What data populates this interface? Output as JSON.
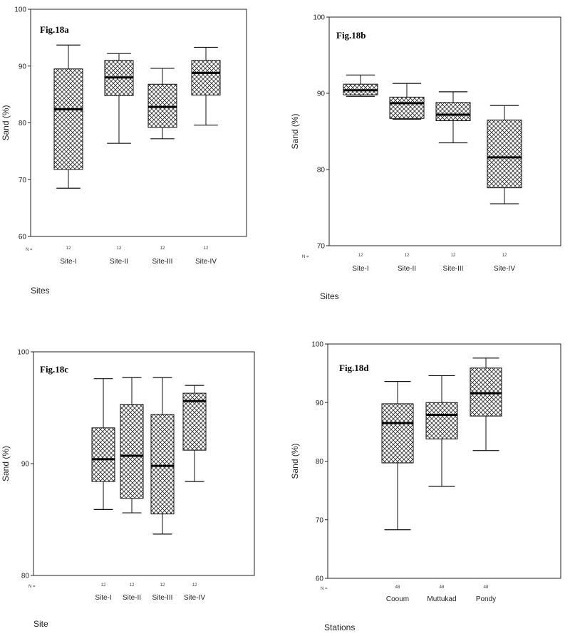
{
  "chart_data": [
    {
      "type": "box",
      "title": "Fig.18a",
      "ylabel": "Sand (%)",
      "xlabel": "Sites",
      "n_label": "N =",
      "ylim": [
        60,
        100
      ],
      "yticks": [
        60,
        70,
        80,
        90,
        100
      ],
      "categories": [
        "Site-I",
        "Site-II",
        "Site-III",
        "Site-IV"
      ],
      "n": [
        "12",
        "12",
        "12",
        "12"
      ],
      "boxes": [
        {
          "min": 68.5,
          "q1": 71.8,
          "median": 82.4,
          "q3": 89.5,
          "max": 93.7
        },
        {
          "min": 76.4,
          "q1": 84.8,
          "median": 88.0,
          "q3": 91.0,
          "max": 92.2
        },
        {
          "min": 77.2,
          "q1": 79.2,
          "median": 82.8,
          "q3": 86.8,
          "max": 89.6
        },
        {
          "min": 79.6,
          "q1": 84.9,
          "median": 88.8,
          "q3": 91.0,
          "max": 93.3
        }
      ]
    },
    {
      "type": "box",
      "title": "Fig.18b",
      "ylabel": "Sand (%)",
      "xlabel": "Sites",
      "n_label": "N =",
      "ylim": [
        70,
        100
      ],
      "yticks": [
        70,
        80,
        90,
        100
      ],
      "categories": [
        "Site-I",
        "Site-II",
        "Site-III",
        "Site-IV"
      ],
      "n": [
        "12",
        "12",
        "12",
        "12"
      ],
      "boxes": [
        {
          "min": 89.6,
          "q1": 89.8,
          "median": 90.4,
          "q3": 91.2,
          "max": 92.4
        },
        {
          "min": 86.6,
          "q1": 86.7,
          "median": 88.7,
          "q3": 89.5,
          "max": 91.3
        },
        {
          "min": 83.5,
          "q1": 86.4,
          "median": 87.2,
          "q3": 88.8,
          "max": 90.2
        },
        {
          "min": 75.5,
          "q1": 77.6,
          "median": 81.6,
          "q3": 86.5,
          "max": 88.4
        }
      ]
    },
    {
      "type": "box",
      "title": "Fig.18c",
      "ylabel": "Sand (%)",
      "xlabel": "Site",
      "n_label": "N =",
      "ylim": [
        80,
        100
      ],
      "yticks": [
        80,
        90,
        100
      ],
      "categories": [
        "Site-I",
        "Site-II",
        "Site-III",
        "Site-IV"
      ],
      "n": [
        "12",
        "12",
        "12",
        "12"
      ],
      "boxes": [
        {
          "min": 85.9,
          "q1": 88.4,
          "median": 90.4,
          "q3": 93.2,
          "max": 97.6
        },
        {
          "min": 85.6,
          "q1": 86.9,
          "median": 90.7,
          "q3": 95.3,
          "max": 97.7
        },
        {
          "min": 83.7,
          "q1": 85.5,
          "median": 89.8,
          "q3": 94.4,
          "max": 97.7
        },
        {
          "min": 88.4,
          "q1": 91.2,
          "median": 95.6,
          "q3": 96.3,
          "max": 97.0
        }
      ]
    },
    {
      "type": "box",
      "title": "Fig.18d",
      "ylabel": "Sand (%)",
      "xlabel": "Stations",
      "n_label": "N =",
      "ylim": [
        60,
        100
      ],
      "yticks": [
        60,
        70,
        80,
        90,
        100
      ],
      "categories": [
        "Cooum",
        "Muttukad",
        "Pondy"
      ],
      "n": [
        "48",
        "48",
        "48"
      ],
      "boxes": [
        {
          "min": 68.3,
          "q1": 79.7,
          "median": 86.5,
          "q3": 89.8,
          "max": 93.6
        },
        {
          "min": 75.7,
          "q1": 83.8,
          "median": 87.9,
          "q3": 90.0,
          "max": 94.6
        },
        {
          "min": 81.8,
          "q1": 87.7,
          "median": 91.6,
          "q3": 95.9,
          "max": 97.6
        }
      ]
    }
  ]
}
